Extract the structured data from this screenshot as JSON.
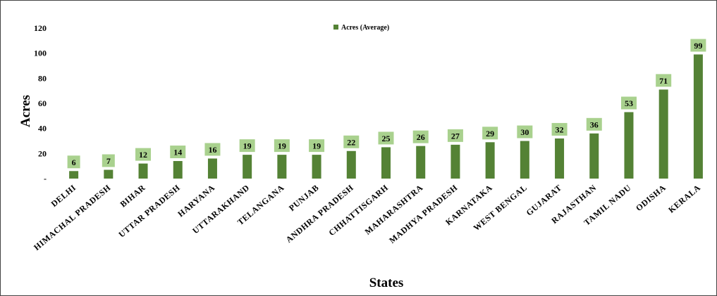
{
  "chart_data": {
    "type": "bar",
    "xlabel": "States",
    "ylabel": "Acres",
    "ylim": [
      0,
      120
    ],
    "yticks": [
      {
        "value": 0,
        "label": "-"
      },
      {
        "value": 20,
        "label": "20"
      },
      {
        "value": 40,
        "label": "40"
      },
      {
        "value": 60,
        "label": "60"
      },
      {
        "value": 80,
        "label": "80"
      },
      {
        "value": 100,
        "label": "100"
      },
      {
        "value": 120,
        "label": "120"
      }
    ],
    "grid": false,
    "legend": {
      "position": "top-center",
      "entries": [
        "Acres (Average)"
      ]
    },
    "categories": [
      "DELHI",
      "HIMACHAL PRADESH",
      "BIHAR",
      "UTTAR PRADESH",
      "HARYANA",
      "UTTARAKHAND",
      "TELANGANA",
      "PUNJAB",
      "ANDHRA PRADESH",
      "CHHATTISGARH",
      "MAHARASHTRA",
      "MADHYA PRADESH",
      "KARNATAKA",
      "WEST BENGAL",
      "GUJARAT",
      "RAJASTHAN",
      "TAMIL NADU",
      "ODISHA",
      "KERALA"
    ],
    "series": [
      {
        "name": "Acres (Average)",
        "values": [
          6,
          7,
          12,
          14,
          16,
          19,
          19,
          19,
          22,
          25,
          26,
          27,
          29,
          30,
          32,
          36,
          53,
          71,
          99
        ]
      }
    ],
    "colors": {
      "bar": "#548235",
      "label_box": "#a9d18e"
    }
  }
}
